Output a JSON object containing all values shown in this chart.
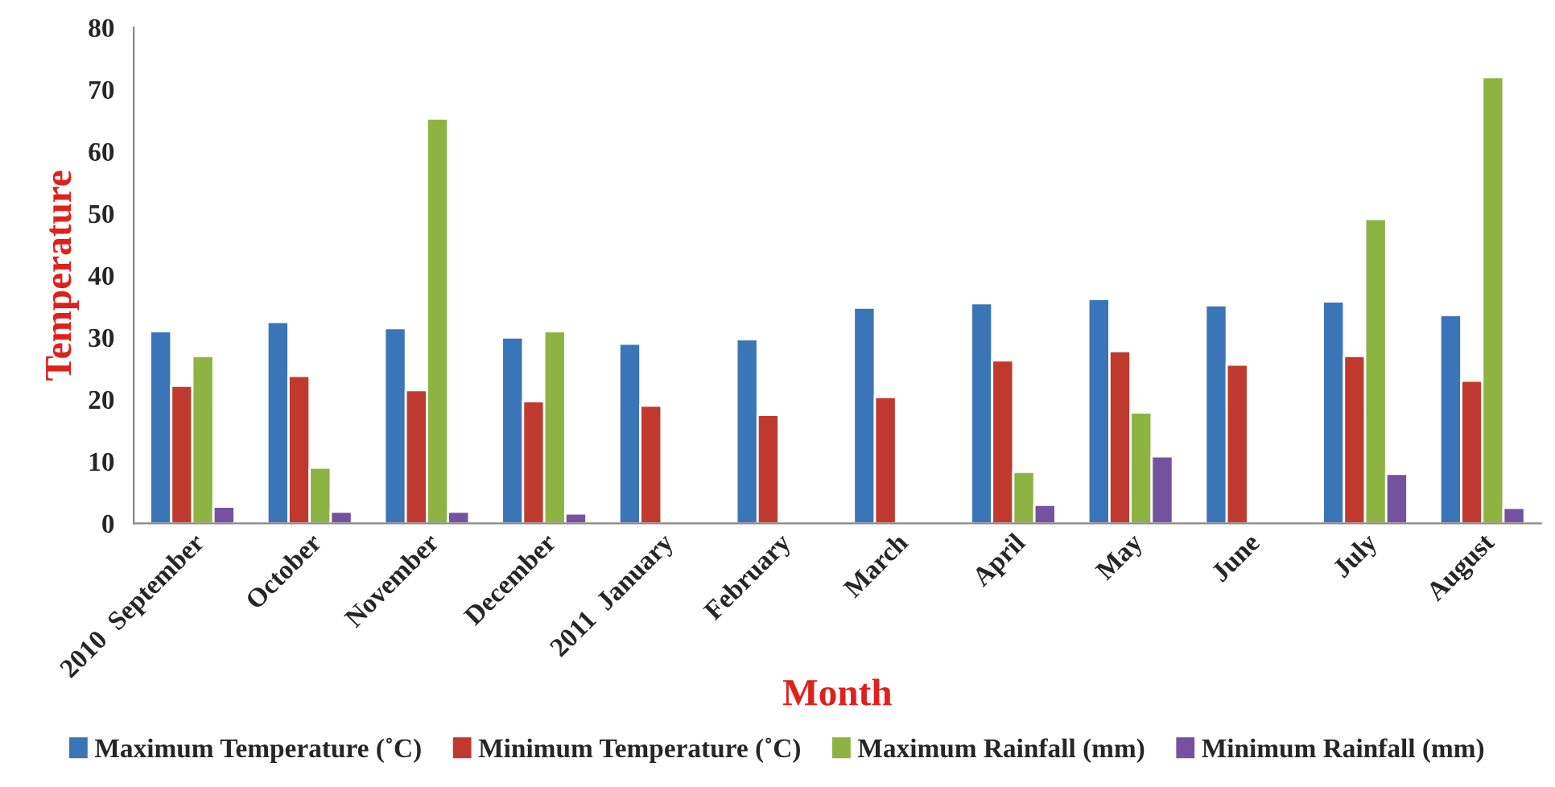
{
  "chart_data": {
    "type": "bar",
    "xlabel": "Month",
    "ylabel": "Temperature",
    "categories": [
      "2010  September",
      "October",
      "November",
      "December",
      "2011  January",
      "February",
      "March",
      "April",
      "May",
      "June",
      "July",
      "August"
    ],
    "series": [
      {
        "name": "Maximum Temperature (˚C)",
        "color": "#3a75b8",
        "values": [
          31,
          32.5,
          31.5,
          30,
          29,
          29.7,
          34.8,
          35.5,
          36.2,
          35.2,
          35.8,
          33.6
        ]
      },
      {
        "name": "Minimum Temperature (˚C)",
        "color": "#c0392f",
        "values": [
          22.2,
          23.8,
          21.5,
          19.7,
          19,
          17.5,
          20.4,
          26.3,
          27.8,
          25.6,
          27,
          23
        ]
      },
      {
        "name": "Maximum Rainfall (mm)",
        "color": "#8db343",
        "values": [
          27,
          9,
          65.3,
          31,
          null,
          null,
          null,
          8.3,
          17.9,
          null,
          49.1,
          72
        ]
      },
      {
        "name": "Minimum Rainfall (mm)",
        "color": "#7452a0",
        "values": [
          2.7,
          1.9,
          1.9,
          1.6,
          null,
          null,
          null,
          3,
          10.8,
          null,
          8,
          2.5
        ]
      }
    ],
    "ylim": [
      0,
      80
    ],
    "yticks": [
      0,
      10,
      20,
      30,
      40,
      50,
      60,
      70,
      80
    ],
    "grid": false,
    "legend": "bottom"
  }
}
